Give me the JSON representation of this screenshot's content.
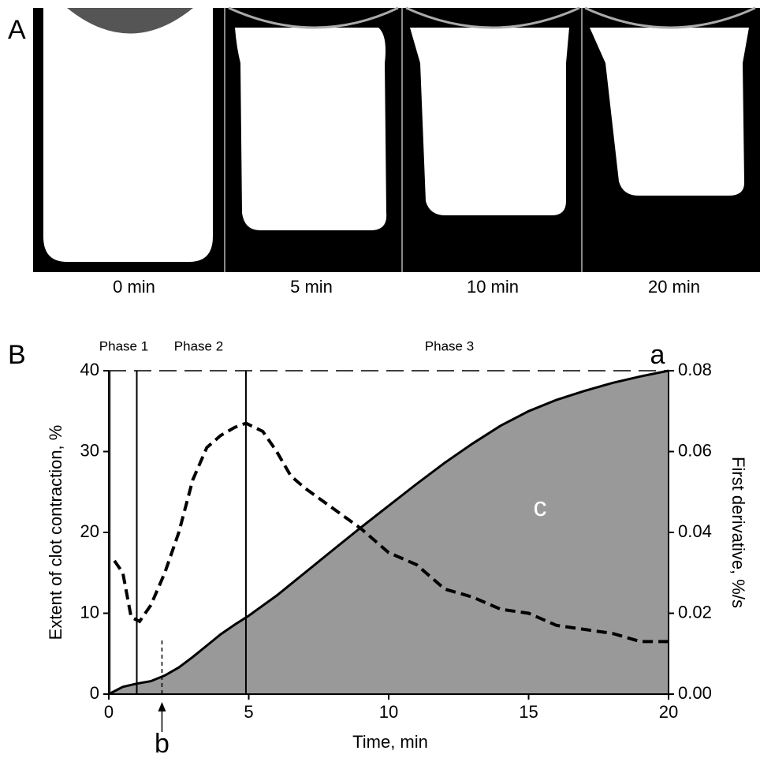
{
  "panel_a": {
    "label": "A",
    "captions": [
      "0 min",
      "5 min",
      "10 min",
      "20 min"
    ]
  },
  "chart_data": {
    "type": "area",
    "panel_label": "B",
    "xlabel": "Time, min",
    "ylabel": "Extent of clot contraction, %",
    "y2label": "First derivative, %/s",
    "xlim": [
      0,
      20
    ],
    "xticks": [
      0,
      5,
      10,
      15,
      20
    ],
    "ylim": [
      0,
      40
    ],
    "yticks": [
      0,
      10,
      20,
      30,
      40
    ],
    "y2lim": [
      0,
      0.08
    ],
    "y2ticks": [
      {
        "value": 0,
        "label": "0.00"
      },
      {
        "value": 0.02,
        "label": "0.02"
      },
      {
        "value": 0.04,
        "label": "0.04"
      },
      {
        "value": 0.06,
        "label": "0.06"
      },
      {
        "value": 0.08,
        "label": "0.08"
      }
    ],
    "phase_lines": [
      0.05,
      1,
      4.9
    ],
    "reference_line": 40,
    "marker_line": 1.9,
    "annotations": [
      "Phase 1",
      "Phase 2",
      "Phase 3",
      "a",
      "b",
      "c"
    ],
    "series": [
      {
        "style": "area",
        "color": "#999999",
        "x": [
          0,
          0.5,
          1,
          1.5,
          2,
          2.5,
          3,
          3.5,
          4,
          4.5,
          5,
          6,
          7,
          8,
          9,
          10,
          11,
          12,
          13,
          14,
          15,
          16,
          17,
          18,
          19,
          20
        ],
        "values": [
          0,
          0.9,
          1.3,
          1.6,
          2.3,
          3.3,
          4.6,
          6,
          7.4,
          8.6,
          9.7,
          12.2,
          15,
          17.8,
          20.6,
          23.3,
          26,
          28.6,
          31,
          33.2,
          35,
          36.4,
          37.5,
          38.5,
          39.3,
          40
        ]
      },
      {
        "style": "dashed",
        "color": "#000000",
        "axis": "y2",
        "x": [
          0.2,
          0.5,
          0.8,
          1.1,
          1.5,
          2,
          2.5,
          3,
          3.5,
          4,
          4.5,
          4.9,
          5.5,
          6,
          6.5,
          7,
          8,
          9,
          10,
          11,
          12,
          13,
          14,
          15,
          16,
          17,
          18,
          19,
          20
        ],
        "values": [
          0.033,
          0.03,
          0.019,
          0.018,
          0.022,
          0.03,
          0.04,
          0.053,
          0.061,
          0.064,
          0.066,
          0.067,
          0.065,
          0.06,
          0.054,
          0.051,
          0.046,
          0.041,
          0.035,
          0.032,
          0.026,
          0.024,
          0.021,
          0.02,
          0.017,
          0.016,
          0.015,
          0.013,
          0.013
        ]
      }
    ]
  }
}
